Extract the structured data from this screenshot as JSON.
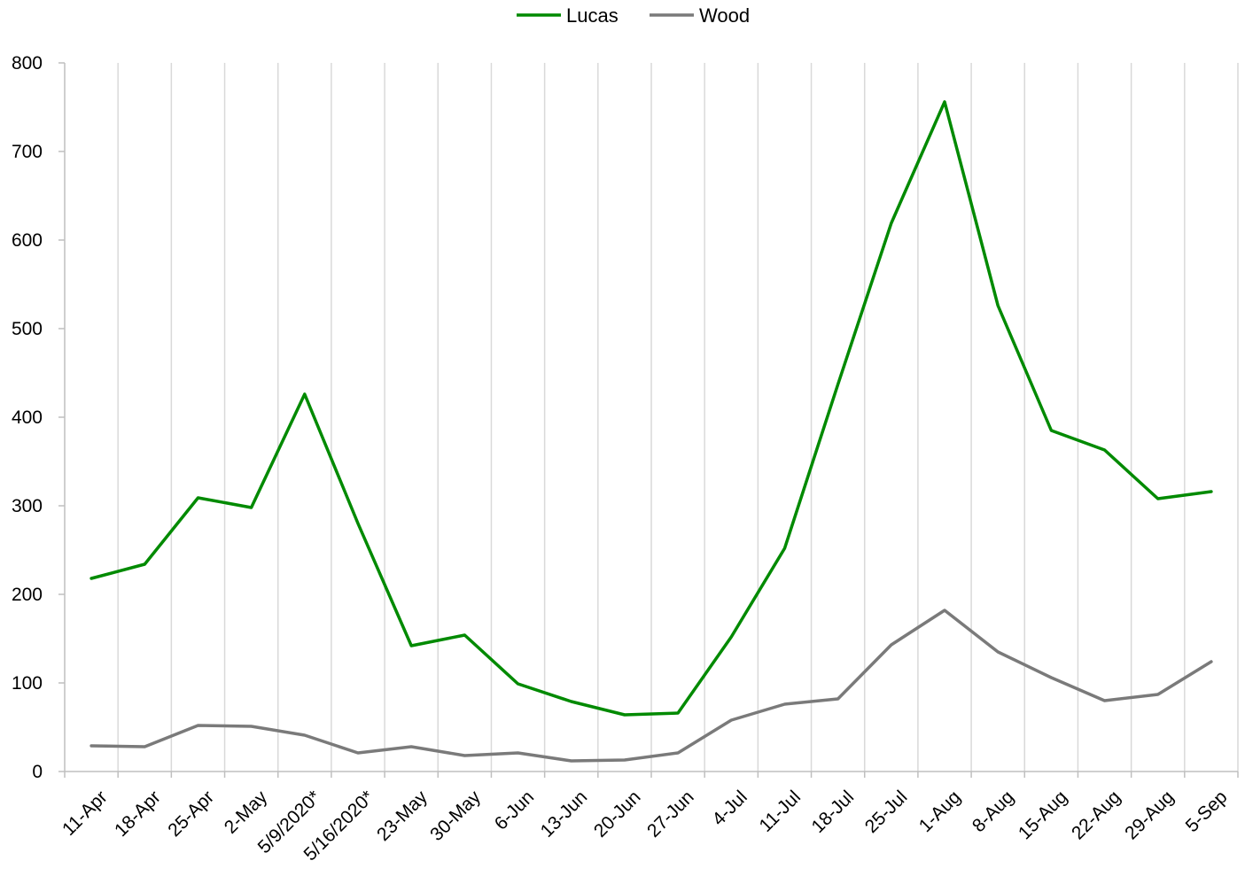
{
  "chart_data": {
    "type": "line",
    "title": "",
    "xlabel": "",
    "ylabel": "",
    "categories": [
      "11-Apr",
      "18-Apr",
      "25-Apr",
      "2-May",
      "5/9/2020*",
      "5/16/2020*",
      "23-May",
      "30-May",
      "6-Jun",
      "13-Jun",
      "20-Jun",
      "27-Jun",
      "4-Jul",
      "11-Jul",
      "18-Jul",
      "25-Jul",
      "1-Aug",
      "8-Aug",
      "15-Aug",
      "22-Aug",
      "29-Aug",
      "5-Sep"
    ],
    "ylim": [
      0,
      800
    ],
    "yticks": [
      0,
      100,
      200,
      300,
      400,
      500,
      600,
      700,
      800
    ],
    "grid": "vertical",
    "legend": "top-center",
    "series": [
      {
        "name": "Lucas",
        "color": "#008a00",
        "values": [
          218,
          234,
          309,
          298,
          426,
          280,
          142,
          154,
          99,
          79,
          64,
          66,
          152,
          252,
          437,
          619,
          756,
          526,
          385,
          363,
          308,
          316
        ]
      },
      {
        "name": "Wood",
        "color": "#7a7a7a",
        "values": [
          29,
          28,
          52,
          51,
          41,
          21,
          28,
          18,
          21,
          12,
          13,
          21,
          58,
          76,
          82,
          143,
          182,
          135,
          106,
          80,
          87,
          124
        ]
      }
    ]
  }
}
